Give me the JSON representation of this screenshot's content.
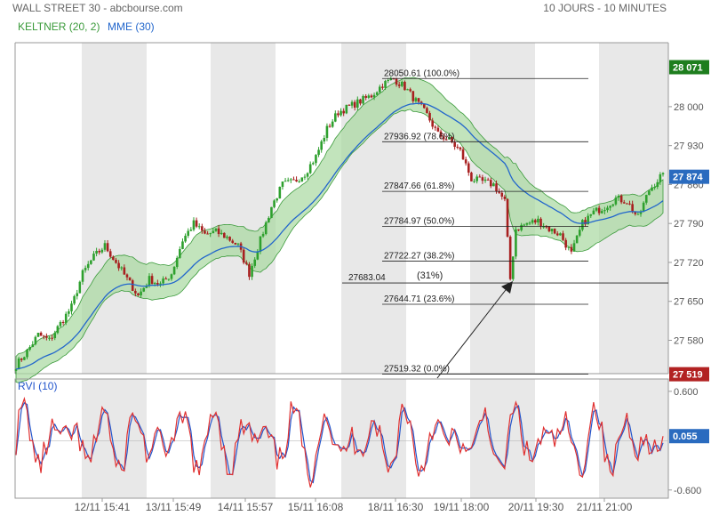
{
  "header": {
    "title": "WALL STREET 30 - abcbourse.com",
    "period": "10 JOURS - 10 MINUTES"
  },
  "legend": {
    "keltner": "KELTNER (20, 2)",
    "mme": "MME (30)",
    "rvi": "RVI (10)"
  },
  "colors": {
    "candle_up": "#2ea02e",
    "candle_down": "#a82020",
    "keltner_fill": "#a8d8a0",
    "keltner_line": "#3a9a3a",
    "mme_line": "#2266cc",
    "rvi_line": "#e03030",
    "rvi_signal": "#2255cc",
    "badge_high": "#1e7e1e",
    "badge_low": "#b22222",
    "badge_last": "#2a6bbf",
    "shade": "#e8e8e8"
  },
  "chart_data": [
    {
      "type": "candlestick",
      "ylim": [
        27520,
        28115
      ],
      "y_ticks": [
        "28 000",
        "27 930",
        "27 860",
        "27 790",
        "27 720",
        "27 650",
        "27 580"
      ],
      "y_tick_values": [
        28000,
        27930,
        27860,
        27790,
        27720,
        27650,
        27580
      ],
      "x_ticks": [
        "12/11 15:41",
        "13/11 15:49",
        "14/11 15:57",
        "15/11 16:08",
        "18/11 16:30",
        "19/11 18:00",
        "20/11 19:30",
        "21/11 21:00"
      ],
      "badges": {
        "high": {
          "label": "28 071",
          "value": 28071
        },
        "last": {
          "label": "27 874",
          "value": 27874
        },
        "low": {
          "label": "27 519",
          "value": 27519
        }
      },
      "path_anchors": [
        [
          0,
          27535
        ],
        [
          4,
          27560
        ],
        [
          8,
          27590
        ],
        [
          12,
          27580
        ],
        [
          16,
          27610
        ],
        [
          20,
          27640
        ],
        [
          24,
          27700
        ],
        [
          28,
          27730
        ],
        [
          32,
          27750
        ],
        [
          36,
          27720
        ],
        [
          40,
          27690
        ],
        [
          44,
          27660
        ],
        [
          48,
          27690
        ],
        [
          52,
          27680
        ],
        [
          56,
          27700
        ],
        [
          60,
          27760
        ],
        [
          64,
          27790
        ],
        [
          68,
          27770
        ],
        [
          72,
          27775
        ],
        [
          76,
          27765
        ],
        [
          80,
          27750
        ],
        [
          84,
          27700
        ],
        [
          88,
          27760
        ],
        [
          92,
          27820
        ],
        [
          96,
          27860
        ],
        [
          100,
          27865
        ],
        [
          104,
          27880
        ],
        [
          108,
          27910
        ],
        [
          112,
          27960
        ],
        [
          116,
          27990
        ],
        [
          120,
          28000
        ],
        [
          124,
          28010
        ],
        [
          128,
          28020
        ],
        [
          132,
          28040
        ],
        [
          136,
          28050
        ],
        [
          140,
          28035
        ],
        [
          144,
          28010
        ],
        [
          148,
          27985
        ],
        [
          152,
          27950
        ],
        [
          156,
          27940
        ],
        [
          160,
          27920
        ],
        [
          164,
          27870
        ],
        [
          168,
          27865
        ],
        [
          172,
          27860
        ],
        [
          176,
          27830
        ],
        [
          178,
          27690
        ],
        [
          180,
          27780
        ],
        [
          184,
          27790
        ],
        [
          188,
          27795
        ],
        [
          192,
          27780
        ],
        [
          196,
          27770
        ],
        [
          200,
          27735
        ],
        [
          204,
          27790
        ],
        [
          208,
          27810
        ],
        [
          212,
          27820
        ],
        [
          216,
          27835
        ],
        [
          220,
          27830
        ],
        [
          224,
          27800
        ],
        [
          228,
          27850
        ],
        [
          232,
          27874
        ]
      ],
      "fibonacci": [
        {
          "price": "28050.61",
          "pct": "(100.0%)",
          "value": 28050.61
        },
        {
          "price": "27936.92",
          "pct": "(78.6%)",
          "value": 27936.92
        },
        {
          "price": "27847.66",
          "pct": "(61.8%)",
          "value": 27847.66
        },
        {
          "price": "27784.97",
          "pct": "(50.0%)",
          "value": 27784.97
        },
        {
          "price": "27722.27",
          "pct": "(38.2%)",
          "value": 27722.27
        },
        {
          "price": "27644.71",
          "pct": "(23.6%)",
          "value": 27644.71
        },
        {
          "price": "27519.32",
          "pct": "(0.0%)",
          "value": 27519.32
        }
      ],
      "extra_level": {
        "price": "27683.04",
        "pct": "(31%)",
        "value": 27683.04
      }
    },
    {
      "type": "line",
      "title": "RVI (10)",
      "ylim": [
        -0.7,
        0.75
      ],
      "y_ticks": [
        "0.600",
        "-0.600"
      ],
      "y_tick_values": [
        0.6,
        -0.6
      ],
      "last": {
        "label": "0.055",
        "value": 0.055
      }
    }
  ]
}
